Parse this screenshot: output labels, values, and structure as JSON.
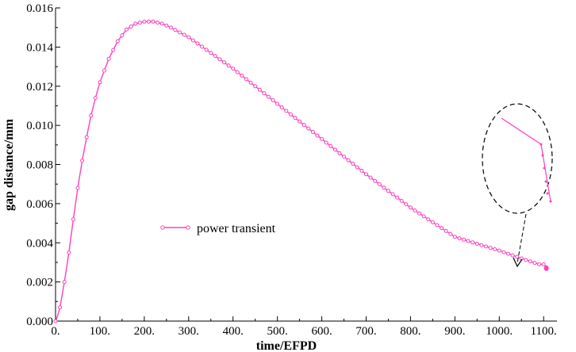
{
  "chart_data": {
    "type": "line",
    "xlabel": "time/EFPD",
    "ylabel": "gap distance/mm",
    "xlim": [
      0,
      1130
    ],
    "ylim": [
      0,
      0.016
    ],
    "x_ticks": [
      0,
      100,
      200,
      300,
      400,
      500,
      600,
      700,
      800,
      900,
      1000,
      1100
    ],
    "x_tick_labels": [
      "0.",
      "100.",
      "200.",
      "300.",
      "400.",
      "500.",
      "600.",
      "700.",
      "800.",
      "900.",
      "1000.",
      "1100."
    ],
    "y_ticks": [
      0,
      0.002,
      0.004,
      0.006,
      0.008,
      0.01,
      0.012,
      0.014,
      0.016
    ],
    "y_tick_labels": [
      "0.000",
      "0.002",
      "0.004",
      "0.006",
      "0.008",
      "0.010",
      "0.012",
      "0.014",
      "0.016"
    ],
    "grid": false,
    "legend_position": "center-left",
    "series": [
      {
        "name": "power transient",
        "color": "#ff3fbf",
        "marker": "open-circle",
        "x": [
          0,
          2,
          5,
          10,
          20,
          30,
          40,
          50,
          60,
          70,
          80,
          90,
          100,
          120,
          140,
          160,
          180,
          200,
          220,
          240,
          260,
          300,
          400,
          500,
          600,
          700,
          800,
          900,
          1000,
          1050,
          1090,
          1100,
          1102,
          1104,
          1106
        ],
        "y": [
          0.0,
          0.0001,
          0.0003,
          0.0007,
          0.002,
          0.0035,
          0.0052,
          0.0068,
          0.0082,
          0.0094,
          0.0105,
          0.0114,
          0.0122,
          0.0134,
          0.0143,
          0.0149,
          0.0152,
          0.0153,
          0.0153,
          0.0152,
          0.015,
          0.0145,
          0.0129,
          0.0111,
          0.0093,
          0.0075,
          0.0058,
          0.0043,
          0.0036,
          0.0032,
          0.0029,
          0.0029,
          0.00285,
          0.0028,
          0.0027
        ]
      }
    ]
  }
}
